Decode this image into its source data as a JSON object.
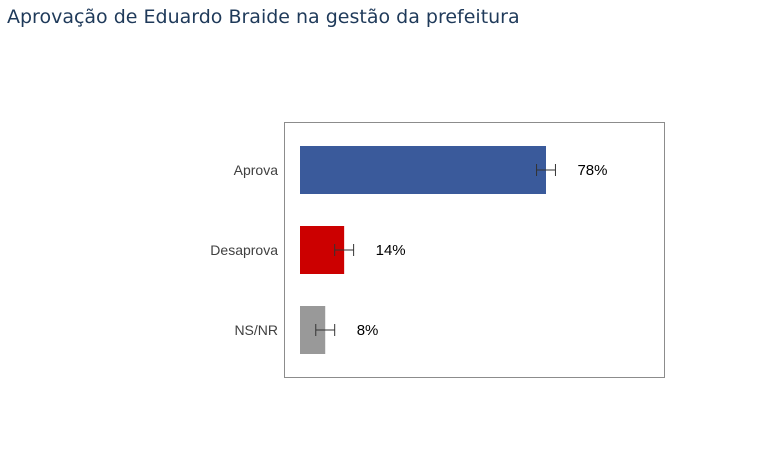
{
  "title": "Aprovação de Eduardo Braide na gestão da prefeitura",
  "chart_data": {
    "type": "bar",
    "orientation": "horizontal",
    "title": "Aprovação de Eduardo Braide na gestão da prefeitura",
    "categories": [
      "Aprova",
      "Desaprova",
      "NS/NR"
    ],
    "values": [
      78,
      14,
      8
    ],
    "value_labels": [
      "78%",
      "14%",
      "8%"
    ],
    "error_margin": 3,
    "colors": [
      "#3a5a9b",
      "#cc0000",
      "#999999"
    ],
    "xlim": [
      0,
      115
    ],
    "grid": false,
    "legend": "none"
  }
}
